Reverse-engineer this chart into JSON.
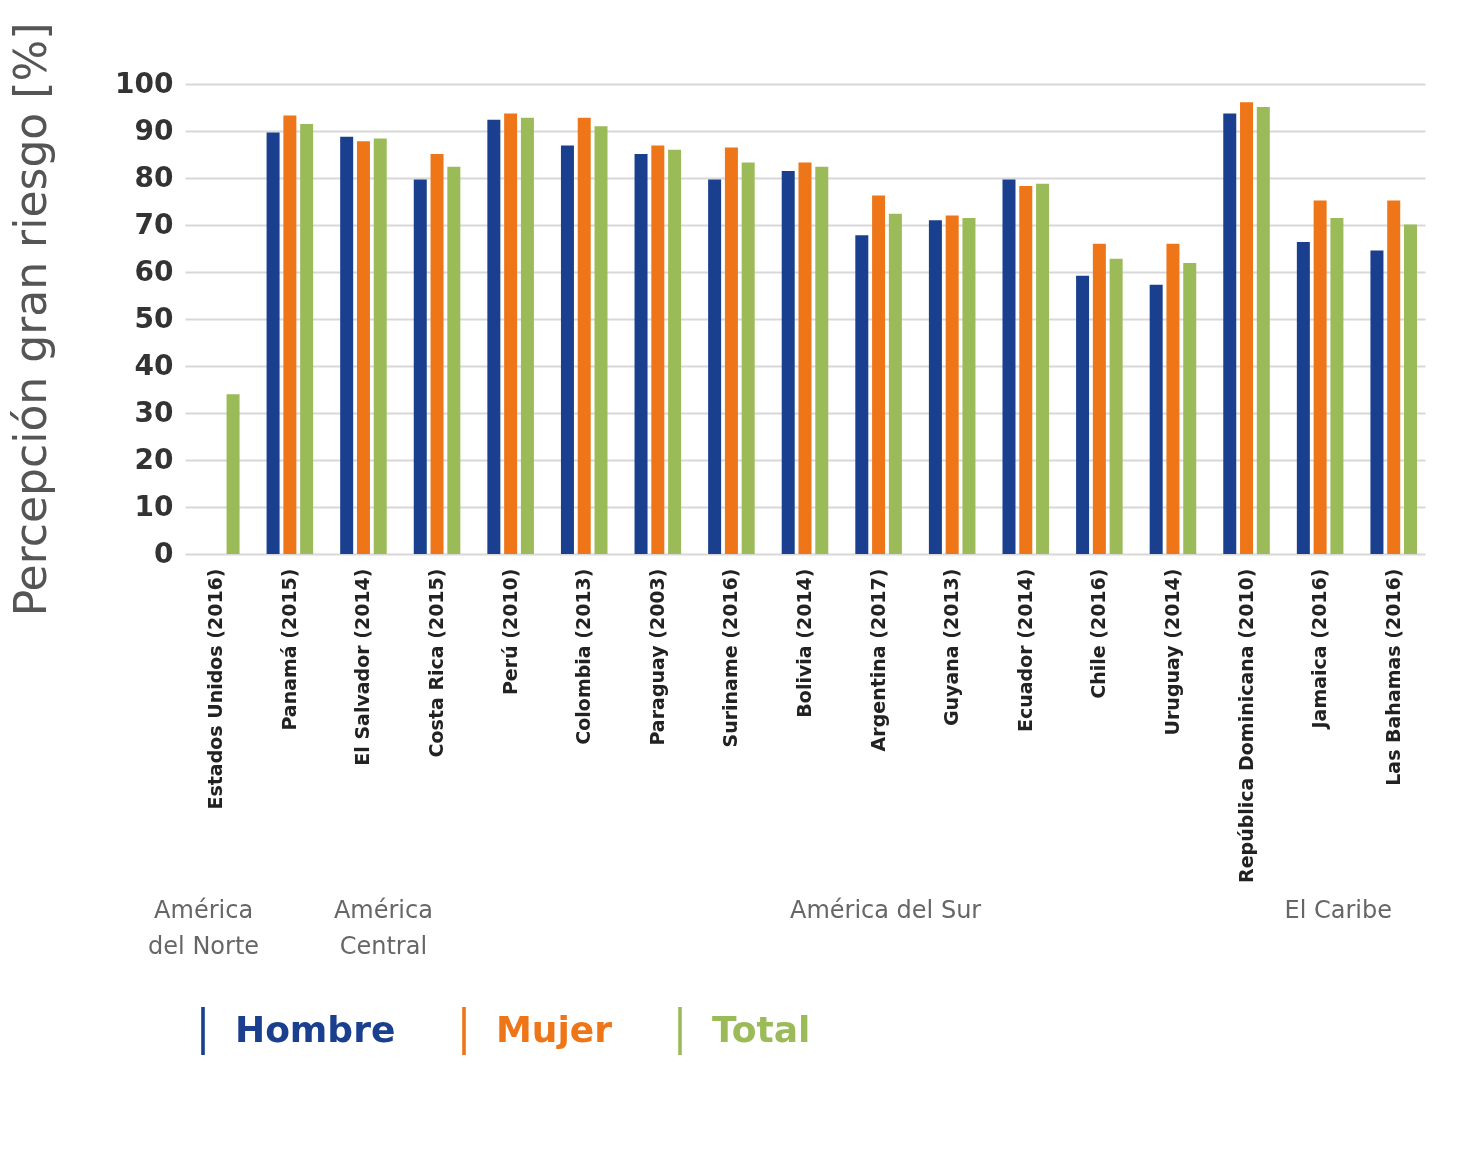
{
  "chart_data": {
    "type": "bar",
    "ylabel": "Percepción gran riesgo [%]",
    "categories": [
      "Estados Unidos (2016)",
      "Panamá (2015)",
      "El Salvador (2014)",
      "Costa Rica (2015)",
      "Perú (2010)",
      "Colombia (2013)",
      "Paraguay (2003)",
      "Suriname (2016)",
      "Bolivia (2014)",
      "Argentina (2017)",
      "Guyana (2013)",
      "Ecuador (2014)",
      "Chile (2016)",
      "Uruguay (2014)",
      "República Dominicana (2010)",
      "Jamaica (2016)",
      "Las Bahamas (2016)"
    ],
    "series": [
      {
        "name": "Hombre",
        "color": "#1a3f8f",
        "values": [
          null,
          89.7,
          88.8,
          79.7,
          92.4,
          86.9,
          85.1,
          79.7,
          81.5,
          67.8,
          71,
          79.7,
          59.2,
          57.3,
          93.7,
          66.4,
          64.6
        ]
      },
      {
        "name": "Mujer",
        "color": "#ee7518",
        "values": [
          null,
          93.3,
          87.8,
          85.1,
          93.7,
          92.8,
          86.9,
          86.5,
          83.3,
          76.3,
          72,
          78.3,
          66,
          66,
          96.1,
          75.2,
          75.2
        ]
      },
      {
        "name": "Total",
        "color": "#9bbb59",
        "values": [
          34,
          91.5,
          88.4,
          82.4,
          92.8,
          91,
          86,
          83.3,
          82.4,
          72.4,
          71.5,
          78.8,
          62.8,
          61.9,
          95.1,
          71.5,
          70.1
        ]
      }
    ],
    "ylim": [
      0,
      100
    ],
    "yticks": [
      0,
      10,
      20,
      30,
      40,
      50,
      60,
      70,
      80,
      90,
      100
    ],
    "grid": "y",
    "legend": "bottom",
    "annotations": [
      "América del Norte",
      "América Central",
      "América del Sur",
      "El Caribe"
    ]
  }
}
